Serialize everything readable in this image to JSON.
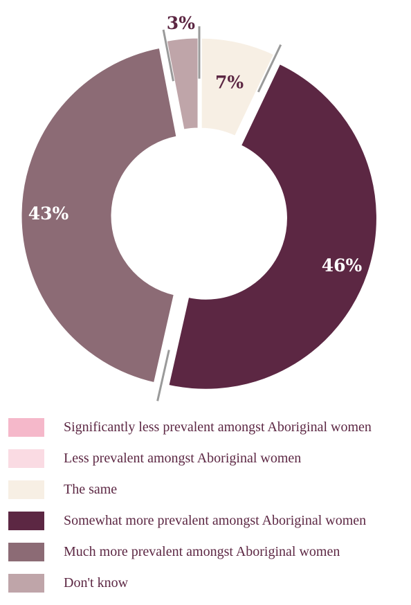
{
  "chart_data": {
    "type": "pie",
    "style": "donut",
    "title": "",
    "categories": [
      "Significantly less prevalent amongst Aboriginal women",
      "Less prevalent amongst Aboriginal women",
      "The same",
      "Somewhat more prevalent amongst Aboriginal women",
      "Much more prevalent amongst Aboriginal women",
      "Don't know"
    ],
    "values": [
      0,
      0,
      7,
      46,
      43,
      3
    ],
    "labels": [
      "",
      "",
      "7%",
      "46%",
      "43%",
      "3%"
    ],
    "colors": [
      "#f5b8ca",
      "#fadbe3",
      "#f7efe4",
      "#5c2743",
      "#8c6b75",
      "#bfa5a9"
    ],
    "label_colors": [
      "#5c2743",
      "#5c2743",
      "#5c2743",
      "#ffffff",
      "#ffffff",
      "#5c2743"
    ],
    "legend": {
      "position": "bottom"
    }
  }
}
